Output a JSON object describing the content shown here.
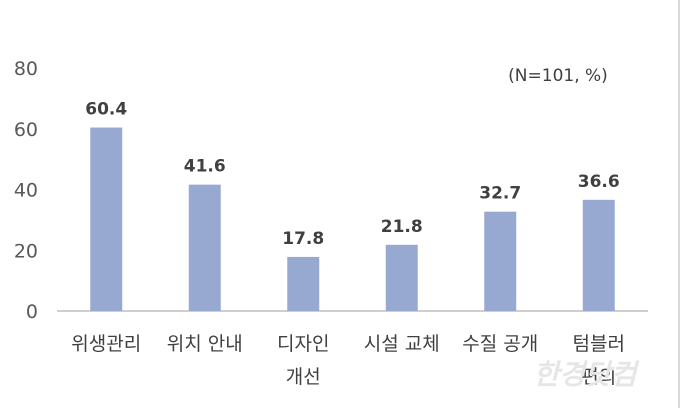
{
  "chart_data": {
    "type": "bar",
    "categories": [
      "위생관리",
      "위치 안내",
      "디자인\n개선",
      "시설 교체",
      "수질 공개",
      "텀블러\n편의"
    ],
    "values": [
      60.4,
      41.6,
      17.8,
      21.8,
      32.7,
      36.6
    ],
    "value_labels": [
      "60.4",
      "41.6",
      "17.8",
      "21.8",
      "32.7",
      "36.6"
    ],
    "y_ticks": [
      "0",
      "20",
      "40",
      "60",
      "80"
    ],
    "ylim": [
      0,
      80
    ],
    "annotation": "(N=101, %)",
    "grid": false,
    "bar_color": "#97a9d1",
    "axis_color": "#bfbfbf"
  },
  "watermark": "한경닷컴"
}
